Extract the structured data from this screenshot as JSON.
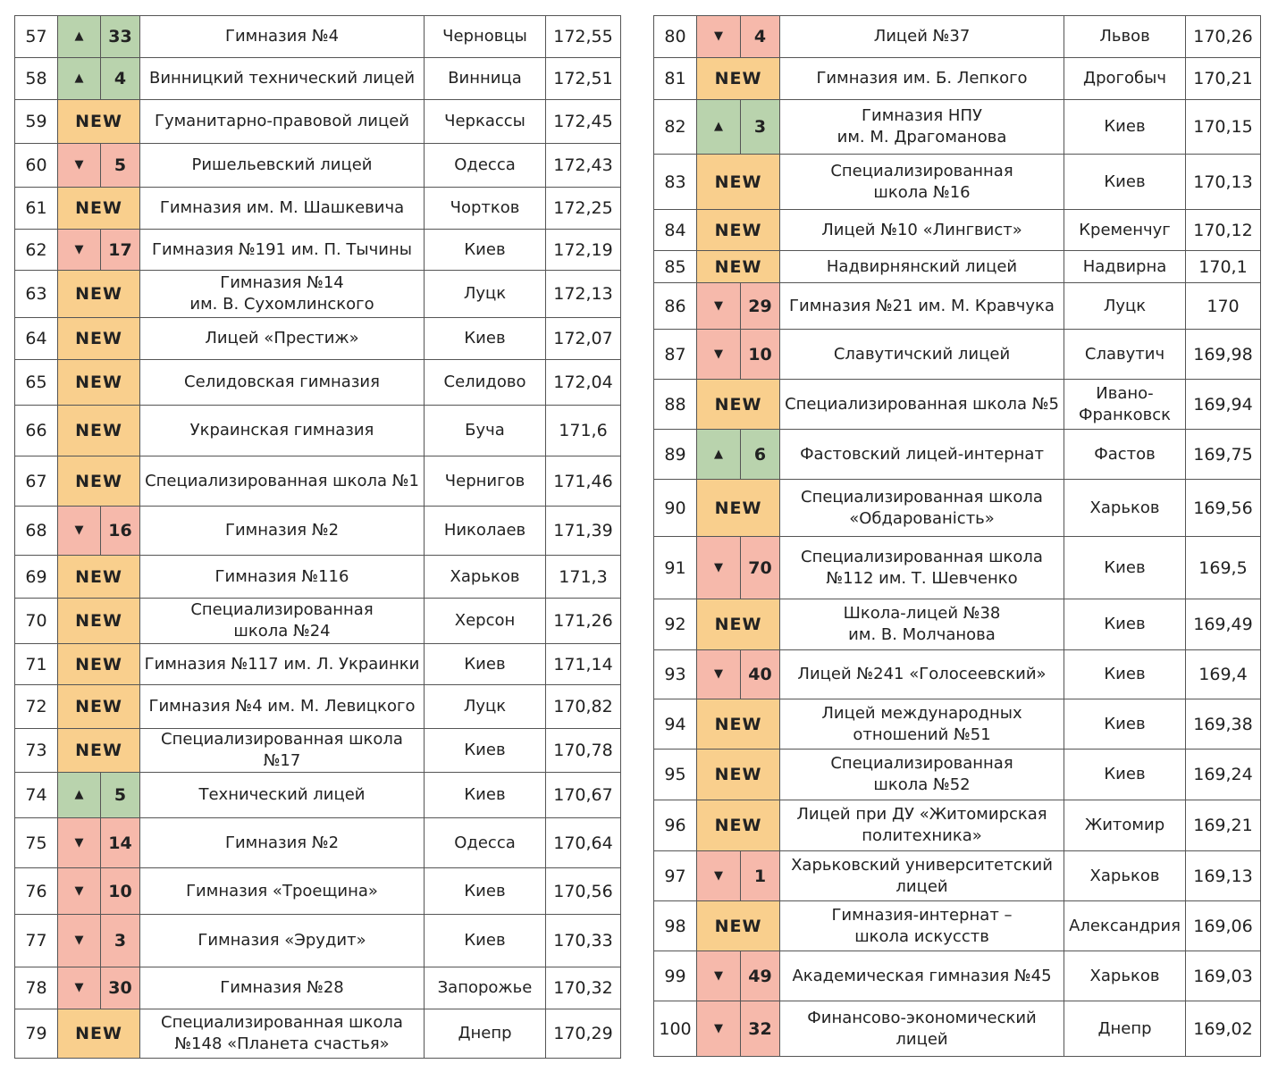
{
  "colors": {
    "up": "#b9d3ad",
    "down": "#f6b9ab",
    "new": "#f9cf8d"
  },
  "icons": {
    "up": "triangle-up-icon",
    "down": "triangle-down-icon"
  },
  "new_label": "NEW",
  "left": [
    [
      "57",
      "up",
      "33",
      "Гимназия №4",
      "Черновцы",
      "172,55"
    ],
    [
      "58",
      "up",
      "4",
      "Винницкий технический лицей",
      "Винница",
      "172,51"
    ],
    [
      "59",
      "new",
      "",
      "Гуманитарно-правовой лицей",
      "Черкассы",
      "172,45"
    ],
    [
      "60",
      "down",
      "5",
      "Ришельевский лицей",
      "Одесса",
      "172,43"
    ],
    [
      "61",
      "new",
      "",
      "Гимназия им. М. Шашкевича",
      "Чортков",
      "172,25"
    ],
    [
      "62",
      "down",
      "17",
      "Гимназия №191 им. П. Тычины",
      "Киев",
      "172,19"
    ],
    [
      "63",
      "new",
      "",
      "Гимназия №14\nим. В. Сухомлинского",
      "Луцк",
      "172,13"
    ],
    [
      "64",
      "new",
      "",
      "Лицей «Престиж»",
      "Киев",
      "172,07"
    ],
    [
      "65",
      "new",
      "",
      "Селидовская гимназия",
      "Селидово",
      "172,04"
    ],
    [
      "66",
      "new",
      "",
      "Украинская гимназия",
      "Буча",
      "171,6"
    ],
    [
      "67",
      "new",
      "",
      "Специализированная школа №1",
      "Чернигов",
      "171,46"
    ],
    [
      "68",
      "down",
      "16",
      "Гимназия №2",
      "Николаев",
      "171,39"
    ],
    [
      "69",
      "new",
      "",
      "Гимназия №116",
      "Харьков",
      "171,3"
    ],
    [
      "70",
      "new",
      "",
      "Специализированная\nшкола №24",
      "Херсон",
      "171,26"
    ],
    [
      "71",
      "new",
      "",
      "Гимназия №117 им. Л. Украинки",
      "Киев",
      "171,14"
    ],
    [
      "72",
      "new",
      "",
      "Гимназия №4 им. М. Левицкого",
      "Луцк",
      "170,82"
    ],
    [
      "73",
      "new",
      "",
      "Специализированная школа №17",
      "Киев",
      "170,78"
    ],
    [
      "74",
      "up",
      "5",
      "Технический лицей",
      "Киев",
      "170,67"
    ],
    [
      "75",
      "down",
      "14",
      "Гимназия №2",
      "Одесса",
      "170,64"
    ],
    [
      "76",
      "down",
      "10",
      "Гимназия «Троещина»",
      "Киев",
      "170,56"
    ],
    [
      "77",
      "down",
      "3",
      "Гимназия «Эрудит»",
      "Киев",
      "170,33"
    ],
    [
      "78",
      "down",
      "30",
      "Гимназия №28",
      "Запорожье",
      "170,32"
    ],
    [
      "79",
      "new",
      "",
      "Специализированная школа\n№148 «Планета счастья»",
      "Днепр",
      "170,29"
    ]
  ],
  "right": [
    [
      "80",
      "down",
      "4",
      "Лицей №37",
      "Львов",
      "170,26"
    ],
    [
      "81",
      "new",
      "",
      "Гимназия им. Б. Лепкого",
      "Дрогобыч",
      "170,21"
    ],
    [
      "82",
      "up",
      "3",
      "Гимназия НПУ\nим. М. Драгоманова",
      "Киев",
      "170,15"
    ],
    [
      "83",
      "new",
      "",
      "Специализированная\nшкола №16",
      "Киев",
      "170,13"
    ],
    [
      "84",
      "new",
      "",
      "Лицей №10 «Лингвист»",
      "Кременчуг",
      "170,12"
    ],
    [
      "85",
      "new",
      "",
      "Надвирнянский лицей",
      "Надвирна",
      "170,1"
    ],
    [
      "86",
      "down",
      "29",
      "Гимназия №21 им. М. Кравчука",
      "Луцк",
      "170"
    ],
    [
      "87",
      "down",
      "10",
      "Славутичский лицей",
      "Славутич",
      "169,98"
    ],
    [
      "88",
      "new",
      "",
      "Специализированная школа №5",
      "Ивано-\nФранковск",
      "169,94"
    ],
    [
      "89",
      "up",
      "6",
      "Фастовский лицей-интернат",
      "Фастов",
      "169,75"
    ],
    [
      "90",
      "new",
      "",
      "Специализированная школа\n«Обдарованість»",
      "Харьков",
      "169,56"
    ],
    [
      "91",
      "down",
      "70",
      "Специализированная школа\n№112 им. Т. Шевченко",
      "Киев",
      "169,5"
    ],
    [
      "92",
      "new",
      "",
      "Школа-лицей №38\nим. В. Молчанова",
      "Киев",
      "169,49"
    ],
    [
      "93",
      "down",
      "40",
      "Лицей №241 «Голосеевский»",
      "Киев",
      "169,4"
    ],
    [
      "94",
      "new",
      "",
      "Лицей международных\nотношений №51",
      "Киев",
      "169,38"
    ],
    [
      "95",
      "new",
      "",
      "Специализированная\nшкола №52",
      "Киев",
      "169,24"
    ],
    [
      "96",
      "new",
      "",
      "Лицей при ДУ «Житомирская\nполитехника»",
      "Житомир",
      "169,21"
    ],
    [
      "97",
      "down",
      "1",
      "Харьковский университетский\nлицей",
      "Харьков",
      "169,13"
    ],
    [
      "98",
      "new",
      "",
      "Гимназия-интернат –\nшкола искусств",
      "Александрия",
      "169,06"
    ],
    [
      "99",
      "down",
      "49",
      "Академическая гимназия №45",
      "Харьков",
      "169,03"
    ],
    [
      "100",
      "down",
      "32",
      "Финансово-экономический\nлицей",
      "Днепр",
      "169,02"
    ]
  ]
}
